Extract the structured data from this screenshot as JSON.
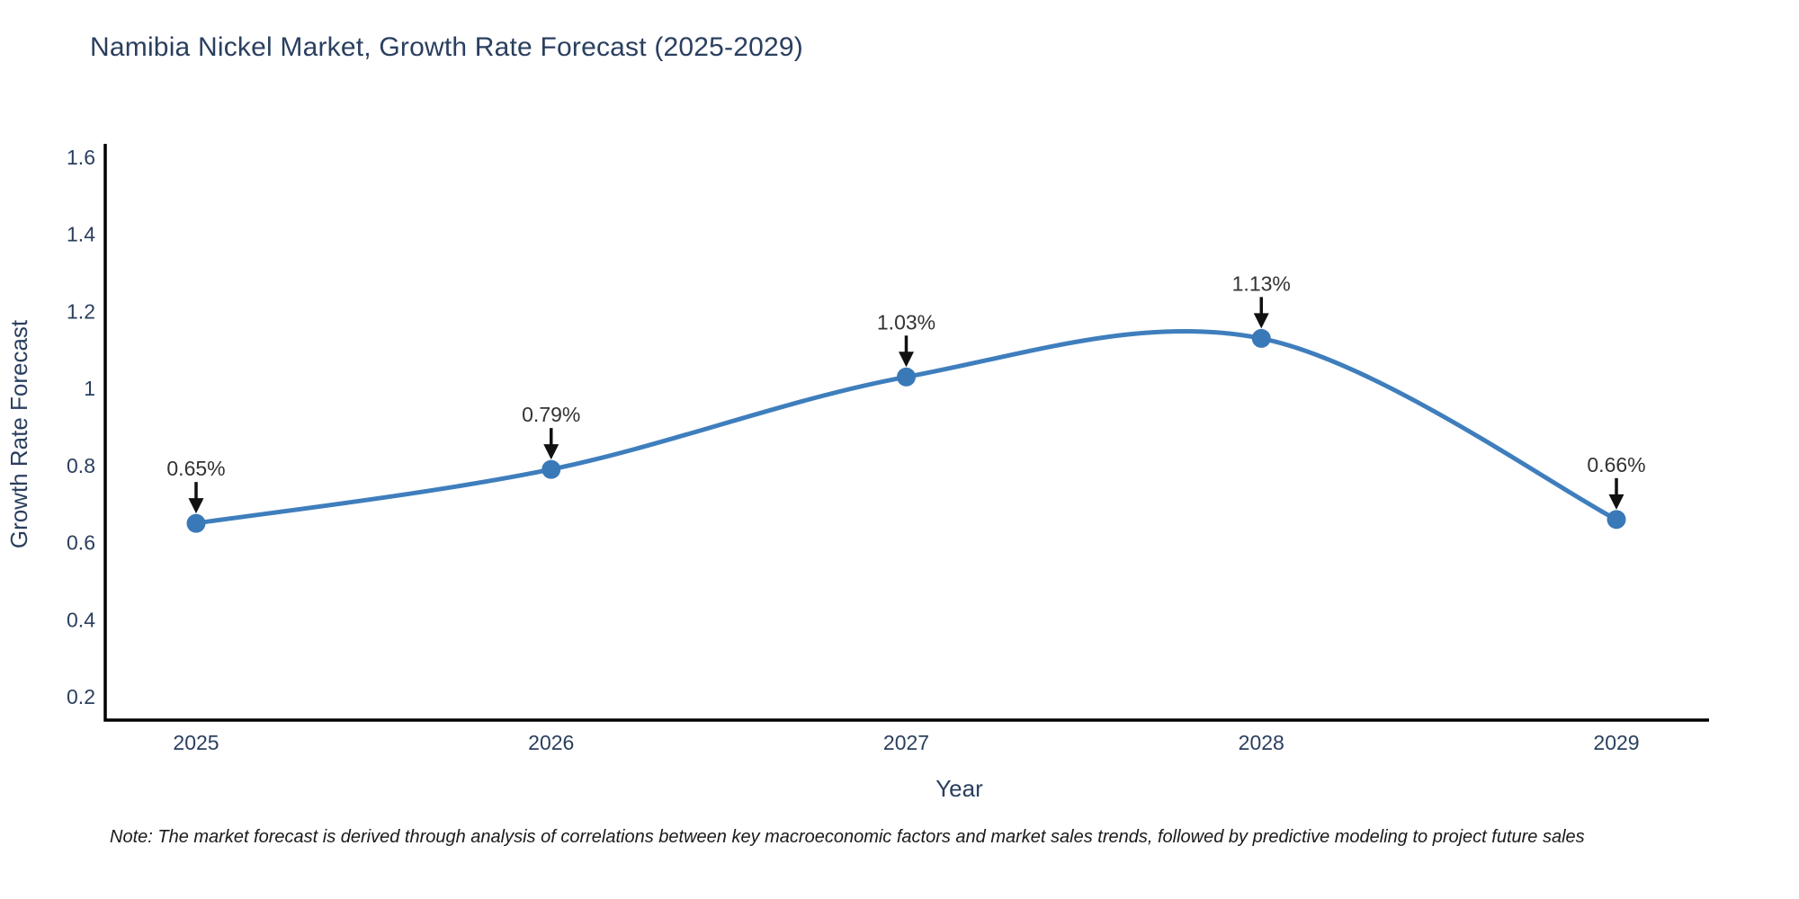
{
  "title": "Namibia Nickel Market, Growth Rate Forecast (2025-2029)",
  "note": "Note: The market forecast is derived through analysis of correlations between key macroeconomic factors and market sales trends, followed by predictive modeling to project future sales",
  "chart_data": {
    "type": "line",
    "line_shape": "spline",
    "title": "Namibia Nickel Market, Growth Rate Forecast (2025-2029)",
    "xlabel": "Year",
    "ylabel": "Growth Rate Forecast",
    "x": [
      2025,
      2026,
      2027,
      2028,
      2029
    ],
    "y": [
      0.65,
      0.79,
      1.03,
      1.13,
      0.66
    ],
    "point_labels": [
      "0.65%",
      "0.79%",
      "1.03%",
      "1.13%",
      "0.66%"
    ],
    "xtick_labels": [
      "2025",
      "2026",
      "2027",
      "2028",
      "2029"
    ],
    "yticks": [
      0.2,
      0.4,
      0.6,
      0.8,
      1.0,
      1.2,
      1.4,
      1.6
    ],
    "ytick_labels": [
      "0.2",
      "0.4",
      "0.6",
      "0.8",
      "1",
      "1.2",
      "1.4",
      "1.6"
    ],
    "ylim": [
      0.14,
      1.6
    ],
    "grid": false,
    "legend": "none",
    "markers": true,
    "annotations_have_arrows": true,
    "colors": {
      "line": "#3f7ebd",
      "marker": "#3a79b8",
      "axis_line": "#000000",
      "tick_text": "#2a3f5f",
      "axis_title_text": "#2a3f5f",
      "title_text": "#2a3f5f",
      "annotation_text": "#333333",
      "arrow": "#111111",
      "background": "#ffffff"
    }
  }
}
